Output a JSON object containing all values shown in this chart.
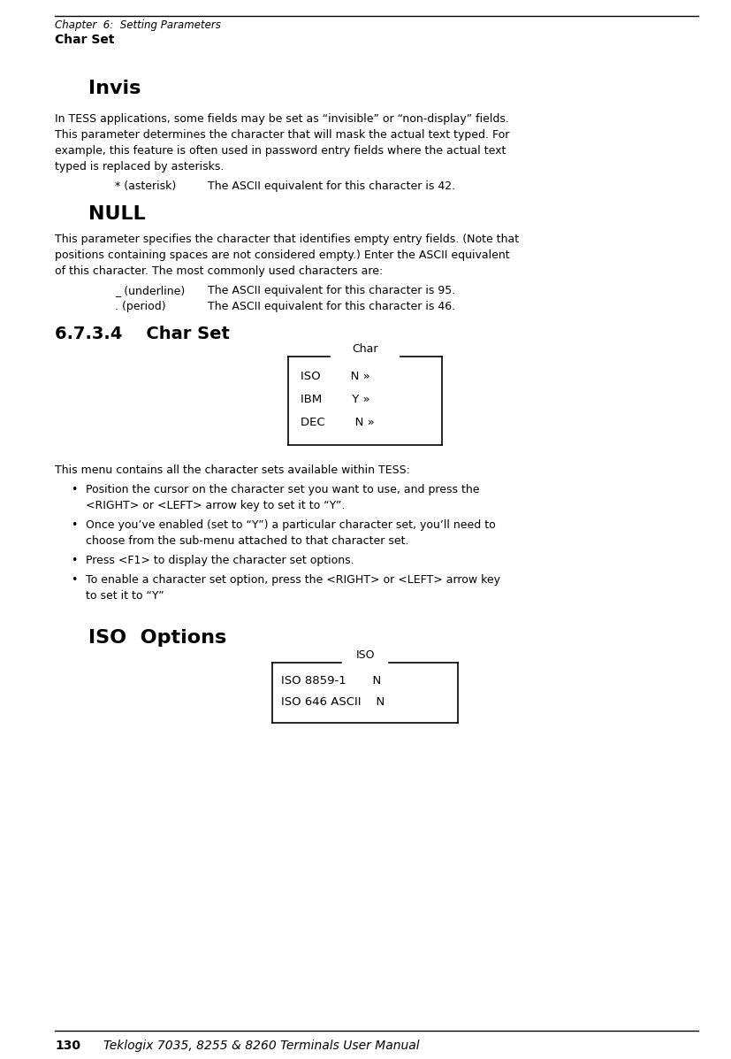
{
  "bg_color": "#ffffff",
  "header_italic": "Chapter  6:  Setting Parameters",
  "header_bold": "Char Set",
  "section1_title": "Invis",
  "section1_body_lines": [
    "In TESS applications, some fields may be set as “invisible” or “non-display” fields.",
    "This parameter determines the character that will mask the actual text typed. For",
    "example, this feature is often used in password entry fields where the actual text",
    "typed is replaced by asterisks."
  ],
  "section1_item1_label": "* (asterisk)",
  "section1_item1_text": "The ASCII equivalent for this character is 42.",
  "section2_title": "NULL",
  "section2_body_lines": [
    "This parameter specifies the character that identifies empty entry fields. (Note that",
    "positions containing spaces are not considered empty.) Enter the ASCII equivalent",
    "of this character. The most commonly used characters are:"
  ],
  "section2_item1_label": "_ (underline)",
  "section2_item1_text": "The ASCII equivalent for this character is 95.",
  "section2_item2_label": ". (period)",
  "section2_item2_text": "The ASCII equivalent for this character is 46.",
  "section3_title": "6.7.3.4    Char Set",
  "char_box_title": "Char",
  "char_box_lines": [
    "ISO        N »",
    "IBM        Y »",
    "DEC        N »"
  ],
  "section3_body": "This menu contains all the character sets available within TESS:",
  "bullets": [
    [
      "Position the cursor on the character set you want to use, and press the",
      "<RIGHT> or <LEFT> arrow key to set it to “Y”."
    ],
    [
      "Once you’ve enabled (set to “Y”) a particular character set, you’ll need to",
      "choose from the sub-menu attached to that character set."
    ],
    [
      "Press <F1> to display the character set options."
    ],
    [
      "To enable a character set option, press the <RIGHT> or <LEFT> arrow key",
      "to set it to “Y”"
    ]
  ],
  "section4_title": "ISO  Options",
  "iso_box_title": "ISO",
  "iso_box_lines": [
    "ISO 8859-1       N",
    "ISO 646 ASCII    N"
  ],
  "footer_num": "130",
  "footer_text": "Teklogix 7035, 8255 & 8260 Terminals User Manual"
}
